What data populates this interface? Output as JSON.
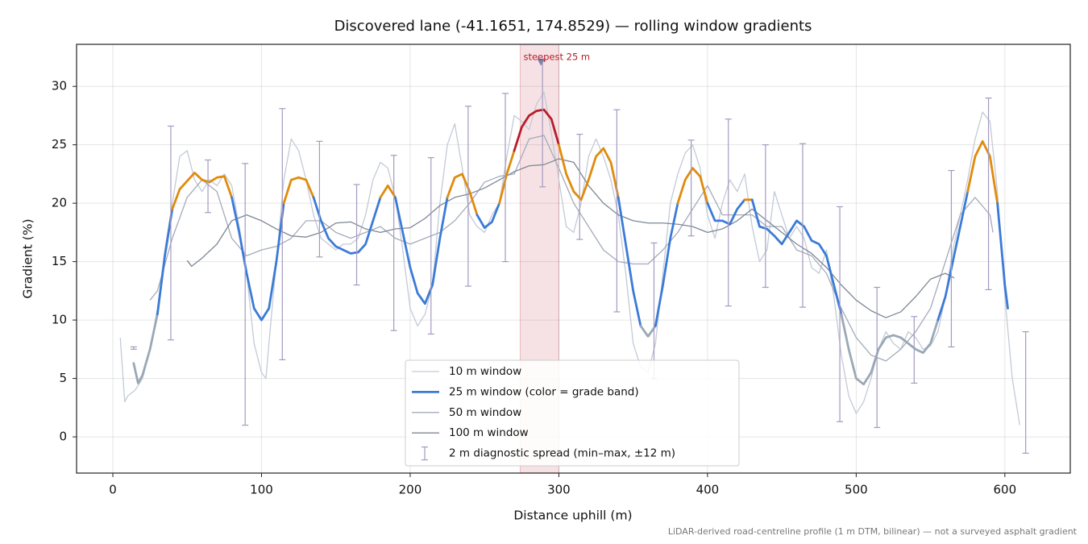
{
  "chart_data": {
    "type": "line",
    "title": "Discovered lane (-41.1651, 174.8529) — rolling window gradients",
    "xlabel": "Distance uphill (m)",
    "ylabel": "Gradient (%)",
    "footnote": "LiDAR-derived road-centreline profile (1 m DTM, bilinear) — not a surveyed asphalt gradient",
    "xlim": [
      -24.4,
      644
    ],
    "ylim": [
      -3.1,
      33.6
    ],
    "xticks": [
      0,
      100,
      200,
      300,
      400,
      500,
      600
    ],
    "yticks": [
      0,
      5,
      10,
      15,
      20,
      25,
      30
    ],
    "grid": true,
    "legend": "lower center",
    "grade_band_edges": [
      10,
      20,
      25
    ],
    "grade_band_colors": [
      "#9aa8b6",
      "#3b7bd6",
      "#e08b0c",
      "#b81c2b"
    ],
    "series": [
      {
        "name": "10 m window",
        "color": "#c3cad6",
        "x": [
          5,
          8,
          10,
          15,
          20,
          25,
          30,
          35,
          40,
          45,
          50,
          55,
          60,
          65,
          70,
          75,
          80,
          85,
          90,
          95,
          100,
          103,
          105,
          110,
          115,
          120,
          125,
          130,
          135,
          140,
          145,
          150,
          155,
          160,
          165,
          170,
          175,
          180,
          185,
          190,
          195,
          200,
          205,
          210,
          215,
          220,
          225,
          230,
          235,
          240,
          245,
          250,
          255,
          260,
          265,
          270,
          275,
          280,
          285,
          290,
          295,
          300,
          305,
          310,
          315,
          320,
          325,
          330,
          335,
          340,
          345,
          350,
          355,
          360,
          365,
          370,
          375,
          380,
          385,
          390,
          395,
          400,
          405,
          410,
          415,
          420,
          425,
          430,
          435,
          440,
          445,
          450,
          455,
          460,
          465,
          470,
          475,
          480,
          485,
          490,
          495,
          500,
          505,
          510,
          515,
          520,
          525,
          530,
          535,
          540,
          545,
          550,
          555,
          560,
          565,
          570,
          575,
          580,
          585,
          590,
          595,
          600,
          605,
          610
        ],
        "values": [
          8.5,
          3,
          3.5,
          4,
          5,
          7.5,
          11,
          16,
          20,
          24,
          24.5,
          22,
          21,
          22,
          21.5,
          22.5,
          21.5,
          18,
          14,
          8,
          5.5,
          5,
          8,
          15,
          22,
          25.5,
          24.5,
          22,
          19,
          17,
          16.5,
          16,
          16.5,
          16.5,
          17,
          19,
          22,
          23.5,
          23,
          20.5,
          16,
          11,
          9.5,
          10.5,
          13,
          20,
          25,
          26.8,
          23,
          19,
          18,
          17.5,
          19,
          20,
          24,
          27.5,
          27,
          26.3,
          28.5,
          29.5,
          26,
          22,
          18,
          17.5,
          20,
          24,
          25.5,
          24,
          22,
          19,
          14,
          8,
          6,
          5.5,
          8,
          14,
          20,
          22.5,
          24.3,
          25,
          23,
          19,
          17,
          20,
          22,
          21,
          22.5,
          18,
          15,
          16,
          21,
          19,
          17,
          18,
          17,
          14.5,
          14,
          16,
          12,
          7,
          3.5,
          2,
          3,
          5,
          7.5,
          9,
          8,
          7.5,
          9,
          8.5,
          7.5,
          7.8,
          9,
          12,
          16,
          19,
          22,
          25.5,
          27.8,
          27,
          21,
          12,
          5,
          1
        ]
      },
      {
        "name": "25 m window (color = grade band)",
        "color": "#3b7bd6",
        "banded": true,
        "x": [
          14,
          17,
          20,
          25,
          30,
          35,
          40,
          45,
          50,
          55,
          60,
          65,
          70,
          75,
          80,
          85,
          90,
          95,
          100,
          105,
          110,
          115,
          120,
          125,
          130,
          135,
          140,
          145,
          150,
          155,
          160,
          165,
          170,
          175,
          180,
          185,
          190,
          195,
          200,
          205,
          210,
          215,
          220,
          225,
          230,
          235,
          240,
          245,
          250,
          255,
          260,
          265,
          270,
          275,
          280,
          285,
          290,
          295,
          300,
          305,
          310,
          315,
          320,
          325,
          330,
          335,
          340,
          345,
          350,
          355,
          360,
          365,
          370,
          375,
          380,
          385,
          390,
          395,
          400,
          405,
          410,
          415,
          420,
          425,
          430,
          435,
          440,
          445,
          450,
          455,
          460,
          465,
          470,
          475,
          480,
          485,
          490,
          495,
          500,
          505,
          510,
          515,
          520,
          525,
          530,
          535,
          540,
          545,
          550,
          555,
          560,
          565,
          570,
          575,
          580,
          585,
          590,
          595,
          600,
          602
        ],
        "values": [
          6.3,
          4.6,
          5.3,
          7.5,
          10.5,
          15.5,
          19.5,
          21.2,
          21.9,
          22.6,
          22,
          21.8,
          22.2,
          22.3,
          20.5,
          17.5,
          14,
          11,
          10,
          11,
          15,
          20,
          22,
          22.2,
          22,
          20.5,
          18.5,
          17,
          16.3,
          16,
          15.7,
          15.8,
          16.5,
          18.5,
          20.5,
          21.5,
          20.5,
          17.5,
          14.5,
          12.3,
          11.4,
          13,
          17,
          20.5,
          22.2,
          22.5,
          21,
          19,
          17.9,
          18.4,
          20,
          22.5,
          24.5,
          26.5,
          27.5,
          27.9,
          28,
          27.2,
          25,
          22.5,
          21,
          20.3,
          22,
          24,
          24.7,
          23.5,
          20.5,
          16.5,
          12.5,
          9.5,
          8.6,
          9.5,
          13,
          17,
          20,
          22,
          23,
          22.3,
          20,
          18.5,
          18.5,
          18.2,
          19.5,
          20.3,
          20.3,
          18,
          17.8,
          17.2,
          16.5,
          17.5,
          18.5,
          18,
          16.8,
          16.5,
          15.5,
          13,
          10.5,
          7.5,
          5,
          4.5,
          5.5,
          7.5,
          8.5,
          8.7,
          8.5,
          8,
          7.5,
          7.2,
          8,
          10,
          12,
          15,
          18,
          21,
          24,
          25.3,
          24,
          20,
          13,
          11
        ]
      },
      {
        "name": "50 m window",
        "color": "#a3abbb",
        "x": [
          25,
          30,
          40,
          50,
          60,
          70,
          80,
          90,
          100,
          110,
          120,
          130,
          140,
          150,
          160,
          170,
          180,
          190,
          200,
          210,
          220,
          230,
          240,
          250,
          260,
          270,
          280,
          290,
          300,
          310,
          320,
          330,
          340,
          350,
          360,
          370,
          380,
          390,
          400,
          410,
          420,
          430,
          440,
          450,
          460,
          470,
          480,
          490,
          500,
          510,
          520,
          530,
          540,
          550,
          560,
          570,
          580,
          590,
          592
        ],
        "values": [
          11.7,
          12.5,
          17,
          20.5,
          22,
          21,
          17,
          15.5,
          16,
          16.3,
          17,
          18.5,
          18.5,
          17.5,
          17,
          17.5,
          18,
          17,
          16.5,
          17,
          17.5,
          18.5,
          20,
          21.8,
          22.3,
          22.5,
          25.5,
          25.8,
          23,
          20,
          18,
          16,
          15,
          14.8,
          14.8,
          16,
          17.5,
          19.5,
          21.5,
          19,
          19,
          19,
          18,
          18,
          16,
          15.5,
          14,
          11,
          8.5,
          7,
          6.5,
          7.5,
          9,
          11,
          15,
          19,
          20.5,
          19,
          17.5
        ]
      },
      {
        "name": "100 m window",
        "color": "#7d8797",
        "x": [
          50,
          53,
          60,
          70,
          80,
          90,
          100,
          110,
          120,
          130,
          140,
          150,
          160,
          170,
          180,
          190,
          200,
          210,
          220,
          230,
          240,
          250,
          260,
          270,
          280,
          290,
          300,
          310,
          320,
          330,
          340,
          350,
          360,
          370,
          380,
          390,
          400,
          410,
          420,
          430,
          440,
          450,
          460,
          470,
          480,
          490,
          500,
          510,
          520,
          530,
          540,
          550,
          560,
          566
        ],
        "values": [
          15.1,
          14.6,
          15.3,
          16.5,
          18.5,
          19,
          18.5,
          17.8,
          17.2,
          17.1,
          17.5,
          18.3,
          18.4,
          17.8,
          17.5,
          17.8,
          17.9,
          18.7,
          19.8,
          20.5,
          20.8,
          21.3,
          22,
          22.7,
          23.2,
          23.3,
          23.8,
          23.5,
          21.5,
          20,
          19,
          18.5,
          18.3,
          18.3,
          18.2,
          18,
          17.5,
          17.8,
          18.5,
          19.5,
          18.5,
          17.5,
          16.5,
          15.7,
          14.5,
          13,
          11.7,
          10.8,
          10.2,
          10.7,
          12,
          13.5,
          14,
          13.6
        ]
      }
    ],
    "errorbars": {
      "name": "2 m diagnostic spread (min–max, ±12 m)",
      "color": "#a49ac0",
      "x": [
        14,
        39,
        64,
        89,
        114,
        139,
        164,
        189,
        214,
        239,
        264,
        289,
        314,
        339,
        364,
        389,
        414,
        439,
        464,
        489,
        514,
        539,
        564,
        589,
        614
      ],
      "low": [
        7.5,
        8.3,
        19.2,
        1.0,
        6.6,
        15.4,
        13.0,
        9.1,
        8.8,
        12.9,
        15.0,
        21.4,
        16.9,
        10.7,
        5.0,
        17.2,
        11.2,
        12.8,
        11.1,
        1.3,
        0.8,
        4.6,
        7.7,
        12.6,
        -1.4
      ],
      "high": [
        7.7,
        26.6,
        23.7,
        23.4,
        28.1,
        25.3,
        21.6,
        24.1,
        23.9,
        28.3,
        29.4,
        32.2,
        25.9,
        28.0,
        16.6,
        25.4,
        27.2,
        25.0,
        25.1,
        19.7,
        12.8,
        10.3,
        22.8,
        29.0,
        9.0
      ]
    },
    "steepest": {
      "label": "steepest 25 m",
      "span": [
        274,
        300
      ],
      "x": 288,
      "y": 32.1,
      "color": "#b81c2b"
    }
  }
}
